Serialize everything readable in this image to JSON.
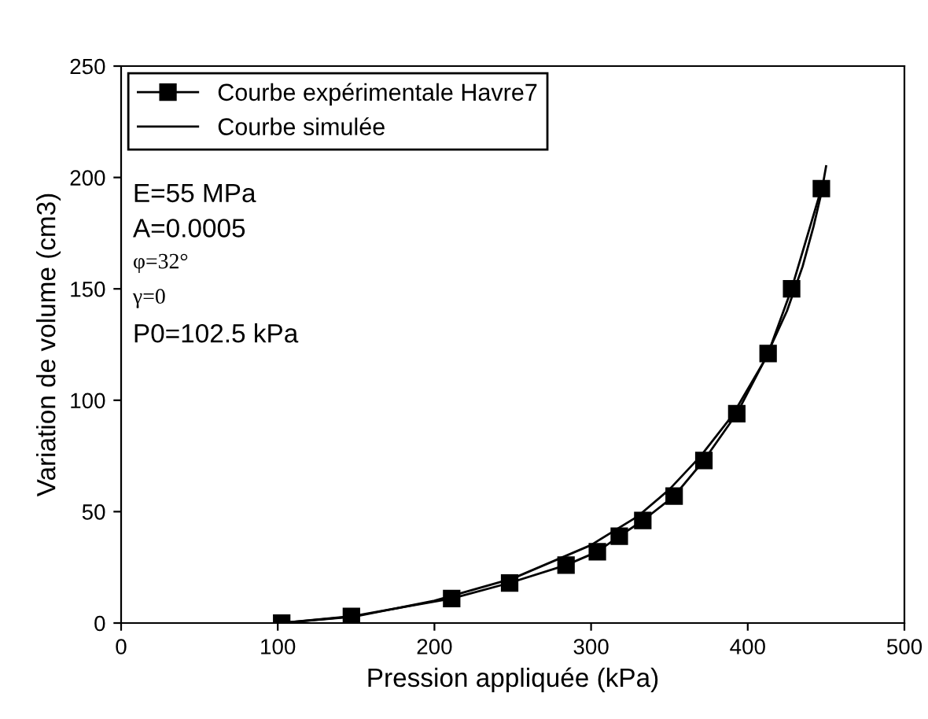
{
  "chart_data": {
    "type": "line",
    "xlabel": "Pression appliquée (kPa)",
    "ylabel": "Variation de volume (cm3)",
    "xlim": [
      0,
      500
    ],
    "xticks": [
      0,
      100,
      200,
      300,
      400,
      500
    ],
    "ylim": [
      0,
      250
    ],
    "yticks": [
      0,
      50,
      100,
      150,
      200,
      250
    ],
    "grid": false,
    "legend": "top left",
    "series": [
      {
        "name": "Courbe expérimentale Havre7",
        "color": "#000000",
        "marker": "square",
        "x": [
          102.5,
          147,
          211,
          248,
          284,
          304,
          318,
          333,
          353,
          372,
          393,
          413,
          428,
          447
        ],
        "values": [
          0,
          3,
          11,
          18,
          26,
          32,
          39,
          46,
          57,
          73,
          94,
          121,
          150,
          195
        ]
      },
      {
        "name": "Courbe simulée",
        "color": "#000000",
        "marker": "none",
        "x": [
          102.5,
          150,
          200,
          250,
          300,
          330,
          350,
          370,
          390,
          410,
          425,
          435,
          442,
          447,
          450
        ],
        "values": [
          0,
          3,
          10,
          20,
          35,
          48,
          60,
          75,
          93,
          117,
          140,
          160,
          178,
          193,
          205
        ]
      }
    ],
    "annotations": [
      "E=55 MPa",
      "A=0.0005",
      "φ=32°",
      "γ=0",
      "P0=102.5 kPa"
    ]
  }
}
